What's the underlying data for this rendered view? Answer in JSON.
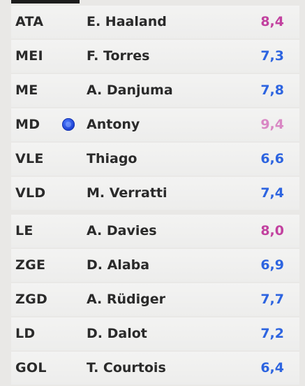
{
  "colors": {
    "blue_rating": "#2d64e0",
    "pink_rating": "#c2419f",
    "pink_faded_rating": "#d987c4"
  },
  "starters": [
    {
      "position": "ATA",
      "name": "E. Haaland",
      "rating": "8,4",
      "rating_color": "pink"
    },
    {
      "position": "MEI",
      "name": "F. Torres",
      "rating": "7,3",
      "rating_color": "blue"
    },
    {
      "position": "ME",
      "name": "A. Danjuma",
      "rating": "7,8",
      "rating_color": "blue"
    },
    {
      "position": "MD",
      "name": "Antony",
      "rating": "9,4",
      "rating_color": "pink-faded",
      "badge": "ball-icon"
    },
    {
      "position": "VLE",
      "name": "Thiago",
      "rating": "6,6",
      "rating_color": "blue"
    },
    {
      "position": "VLD",
      "name": "M. Verratti",
      "rating": "7,4",
      "rating_color": "blue"
    }
  ],
  "defenders": [
    {
      "position": "LE",
      "name": "A. Davies",
      "rating": "8,0",
      "rating_color": "pink"
    },
    {
      "position": "ZGE",
      "name": "D. Alaba",
      "rating": "6,9",
      "rating_color": "blue"
    },
    {
      "position": "ZGD",
      "name": "A. Rüdiger",
      "rating": "7,7",
      "rating_color": "blue"
    },
    {
      "position": "LD",
      "name": "D. Dalot",
      "rating": "7,2",
      "rating_color": "blue"
    },
    {
      "position": "GOL",
      "name": "T. Courtois",
      "rating": "6,4",
      "rating_color": "blue"
    }
  ]
}
